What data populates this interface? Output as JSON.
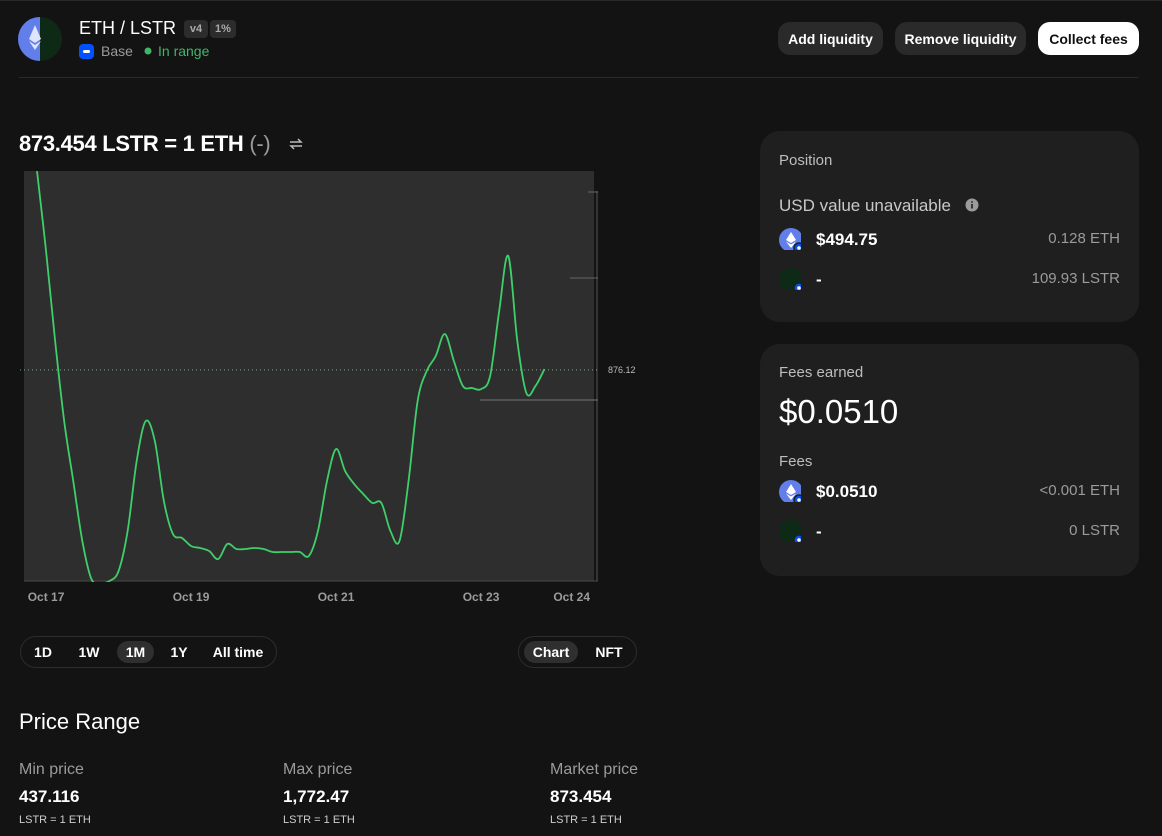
{
  "header": {
    "pair": "ETH / LSTR",
    "version": "v4",
    "fee_tier": "1%",
    "network": "Base",
    "status": "In range",
    "buttons": [
      "Add liquidity",
      "Remove liquidity",
      "Collect fees"
    ]
  },
  "price": {
    "quote": "873.454 LSTR = 1 ETH",
    "change": "(-)"
  },
  "chart_data": {
    "type": "line",
    "color": "#3ecf6a",
    "categories": [
      null,
      "Oct 17",
      null,
      null,
      null,
      null,
      null,
      null,
      null,
      null,
      null,
      null,
      null,
      null,
      null,
      null,
      null,
      "Oct 19",
      null,
      null,
      null,
      null,
      null,
      null,
      null,
      null,
      null,
      null,
      null,
      null,
      null,
      null,
      null,
      "Oct 21",
      null,
      null,
      null,
      null,
      null,
      null,
      null,
      null,
      null,
      null,
      null,
      null,
      null,
      null,
      null,
      "Oct 23",
      null,
      null,
      null,
      null,
      null,
      null,
      null,
      null,
      null,
      "Oct 24"
    ],
    "values": [
      1042,
      975.2,
      900.2,
      833.4,
      783.4,
      733.4,
      701.7,
      698.3,
      700,
      708.3,
      741.7,
      800.1,
      833.4,
      816.8,
      766.7,
      739.2,
      735.9,
      729.2,
      727.5,
      725,
      718.3,
      730.9,
      726.7,
      726.7,
      727.5,
      726.7,
      724.2,
      724.2,
      724.2,
      724.2,
      720.9,
      741.7,
      783.4,
      810.1,
      791.7,
      780.9,
      772.6,
      765.1,
      765.1,
      741.7,
      733.4,
      783.4,
      850.1,
      875.1,
      887.7,
      906,
      883.5,
      862.6,
      861,
      860.1,
      871,
      925.2,
      971.1,
      900.2,
      856.8,
      862.6,
      876.8,
      null,
      null,
      null
    ],
    "ylim": [
      700,
      1042
    ],
    "current_price": 876.12
  },
  "time_ranges": {
    "options": [
      "1D",
      "1W",
      "1M",
      "1Y",
      "All time"
    ],
    "selected_index": 2
  },
  "view_toggle": {
    "options": [
      "Chart",
      "NFT"
    ],
    "selected_index": 0
  },
  "position": {
    "title": "Position",
    "usd_note": "USD value unavailable",
    "rows": [
      {
        "usd": "$494.75",
        "amount": "0.128 ETH"
      },
      {
        "usd": "-",
        "amount": "109.93 LSTR"
      }
    ]
  },
  "fees": {
    "title": "Fees earned",
    "total": "$0.0510",
    "subtitle": "Fees",
    "rows": [
      {
        "usd": "$0.0510",
        "amount": "<0.001 ETH"
      },
      {
        "usd": "-",
        "amount": "0 LSTR"
      }
    ]
  },
  "price_range": {
    "title": "Price Range",
    "columns": [
      {
        "label": "Min price",
        "value": "437.116",
        "unit": "LSTR = 1 ETH"
      },
      {
        "label": "Max price",
        "value": "1,772.47",
        "unit": "LSTR = 1 ETH"
      },
      {
        "label": "Market price",
        "value": "873.454",
        "unit": "LSTR = 1 ETH"
      }
    ]
  }
}
